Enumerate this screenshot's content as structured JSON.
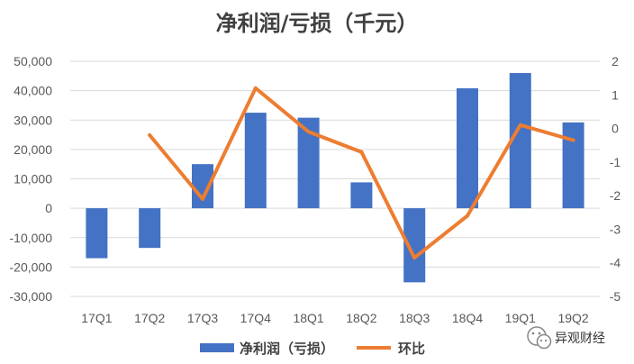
{
  "chart_data": {
    "type": "bar",
    "title": "净利润/亏损（千元）",
    "categories": [
      "17Q1",
      "17Q2",
      "17Q3",
      "17Q4",
      "18Q1",
      "18Q2",
      "18Q3",
      "18Q4",
      "19Q1",
      "19Q2"
    ],
    "series": [
      {
        "name": "净利润（亏损）",
        "type": "bar",
        "axis": "left",
        "color": "#4472C4",
        "values": [
          -17000,
          -13500,
          15000,
          32500,
          30800,
          8800,
          -25200,
          40800,
          46000,
          29200
        ]
      },
      {
        "name": "环比",
        "type": "line",
        "axis": "right",
        "color": "#ED7D31",
        "values": [
          null,
          -0.2,
          -2.1,
          1.2,
          -0.1,
          -0.7,
          -3.85,
          -2.6,
          0.1,
          -0.35
        ]
      }
    ],
    "y_left": {
      "lim": [
        -30000,
        50000
      ],
      "ticks": [
        -30000,
        -20000,
        -10000,
        0,
        10000,
        20000,
        30000,
        40000,
        50000
      ],
      "tick_labels": [
        "-30,000",
        "-20,000",
        "-10,000",
        "0",
        "10,000",
        "20,000",
        "30,000",
        "40,000",
        "50,000"
      ]
    },
    "y_right": {
      "lim": [
        -5,
        2
      ],
      "ticks": [
        -5,
        -4,
        -3,
        -2,
        -1,
        0,
        1,
        2
      ],
      "tick_labels": [
        "-5",
        "-4",
        "-3",
        "-2",
        "-1",
        "0",
        "1",
        "2"
      ]
    },
    "grid": true,
    "legend": "bottom"
  },
  "watermark": {
    "text": "异观财经",
    "icon": "wechat-icon"
  }
}
